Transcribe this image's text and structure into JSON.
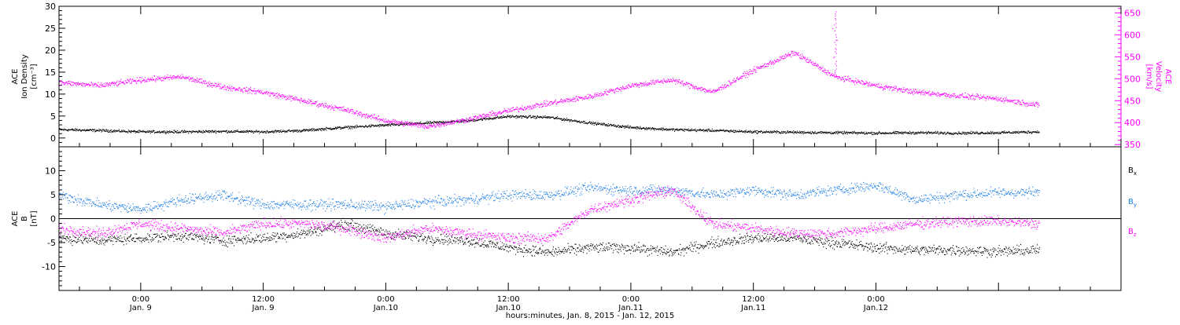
{
  "chart_data": [
    {
      "type": "scatter",
      "title": "",
      "left_axis": {
        "label_lines": [
          "ACE",
          "Ion Density",
          "[cm⁻³]"
        ],
        "ylim": [
          -2,
          30
        ],
        "major_ticks": [
          0,
          5,
          10,
          15,
          20,
          25,
          30
        ],
        "tick_labels": [
          "0",
          "5",
          "10",
          "15",
          "20",
          "25",
          "30"
        ]
      },
      "right_axis": {
        "label_lines": [
          "ACE",
          "Velocity",
          "[km/s]"
        ],
        "ylim": [
          345,
          665
        ],
        "major_ticks": [
          350,
          400,
          450,
          500,
          550,
          600,
          650
        ],
        "tick_labels": [
          "350",
          "400",
          "450",
          "500",
          "550",
          "600",
          "650"
        ],
        "color": "#ff00ff"
      },
      "x_range_hours": [
        -8,
        96
      ],
      "series": [
        {
          "name": "",
          "axis": "left",
          "color": "#000000",
          "x_hours": [
            -8,
            -4,
            0,
            4,
            8,
            12,
            16,
            20,
            24,
            28,
            32,
            36,
            40,
            44,
            48,
            52,
            56,
            60,
            64,
            68,
            72,
            76,
            80,
            84,
            88
          ],
          "values": [
            2,
            1.8,
            1.5,
            1.5,
            1.6,
            1.5,
            1.8,
            2.5,
            3,
            3.5,
            4,
            5,
            4.8,
            3.5,
            2.5,
            2,
            1.8,
            1.5,
            1.4,
            1.3,
            1.2,
            1.3,
            1.2,
            1.3,
            1.5
          ]
        },
        {
          "name": "",
          "axis": "right",
          "color": "#ff00ff",
          "x_hours": [
            -8,
            -4,
            0,
            4,
            8,
            12,
            16,
            20,
            24,
            28,
            32,
            36,
            40,
            44,
            48,
            52,
            56,
            60,
            64,
            68,
            72,
            76,
            80,
            84,
            88
          ],
          "values": [
            492,
            485,
            498,
            505,
            482,
            470,
            450,
            430,
            405,
            392,
            408,
            428,
            445,
            460,
            485,
            498,
            470,
            520,
            560,
            505,
            485,
            470,
            462,
            455,
            440
          ]
        }
      ],
      "spikes": [
        {
          "axis": "right",
          "x_hours": 68,
          "value": 655
        }
      ]
    },
    {
      "type": "scatter",
      "left_axis": {
        "label_lines": [
          "ACE",
          "B",
          "[nT]"
        ],
        "ylim": [
          -15,
          15
        ],
        "major_ticks": [
          -10,
          -5,
          0,
          5,
          10
        ],
        "tick_labels": [
          "-10",
          "-5",
          "0",
          "5",
          "10"
        ]
      },
      "zero_line": true,
      "x_range_hours": [
        -8,
        96
      ],
      "legend": {
        "placement": "right",
        "entries": [
          {
            "name": "Bx",
            "main": "B",
            "sub": "x",
            "color": "#000000"
          },
          {
            "name": "By",
            "main": "B",
            "sub": "y",
            "color": "#1e7fe6"
          },
          {
            "name": "Bz",
            "main": "B",
            "sub": "z",
            "color": "#ff00ff"
          }
        ]
      },
      "series": [
        {
          "name": "Bx",
          "color": "#000000",
          "x_hours": [
            -8,
            -4,
            0,
            4,
            8,
            12,
            16,
            20,
            24,
            28,
            32,
            36,
            40,
            44,
            48,
            52,
            56,
            60,
            64,
            68,
            72,
            76,
            80,
            84,
            88
          ],
          "values": [
            -4,
            -4.5,
            -4,
            -3.5,
            -4.5,
            -4,
            -3,
            -1,
            -3,
            -4,
            -4.5,
            -6,
            -7,
            -6,
            -6,
            -7,
            -5,
            -4,
            -4,
            -5,
            -6,
            -6.5,
            -6.5,
            -6.8,
            -6.5
          ]
        },
        {
          "name": "By",
          "color": "#1e7fe6",
          "x_hours": [
            -8,
            -4,
            0,
            4,
            8,
            12,
            16,
            20,
            24,
            28,
            32,
            36,
            40,
            44,
            48,
            52,
            56,
            60,
            64,
            68,
            72,
            76,
            80,
            84,
            88
          ],
          "values": [
            5,
            3,
            2,
            4,
            5,
            3,
            3,
            3,
            2.5,
            3.5,
            4,
            5,
            5,
            6.5,
            6,
            6,
            5,
            6,
            5,
            6,
            7,
            4,
            5,
            5.5,
            5.5
          ]
        },
        {
          "name": "Bz",
          "color": "#ff00ff",
          "x_hours": [
            -8,
            -4,
            0,
            4,
            8,
            12,
            16,
            20,
            24,
            28,
            32,
            36,
            40,
            44,
            48,
            52,
            56,
            60,
            64,
            68,
            72,
            76,
            80,
            84,
            88
          ],
          "values": [
            -2,
            -3,
            -1,
            -2,
            -3,
            -1,
            -1,
            -2,
            -4,
            -2,
            -3,
            -4,
            -4,
            2,
            4,
            6,
            -1,
            -2,
            -3,
            -3,
            -2,
            -1,
            -0.5,
            -0.5,
            -1
          ]
        }
      ]
    }
  ],
  "x_axis": {
    "tick_labels": [
      {
        "hours": 0,
        "time": "0:00",
        "date": "Jan. 9"
      },
      {
        "hours": 12,
        "time": "12:00",
        "date": "Jan. 9"
      },
      {
        "hours": 24,
        "time": "0:00",
        "date": "Jan.10"
      },
      {
        "hours": 36,
        "time": "12:00",
        "date": "Jan.10"
      },
      {
        "hours": 48,
        "time": "0:00",
        "date": "Jan.11"
      },
      {
        "hours": 60,
        "time": "12:00",
        "date": "Jan.11"
      },
      {
        "hours": 72,
        "time": "0:00",
        "date": "Jan.12"
      }
    ],
    "xlabel": "hours:minutes, Jan.  8, 2015 - Jan. 12, 2015"
  }
}
